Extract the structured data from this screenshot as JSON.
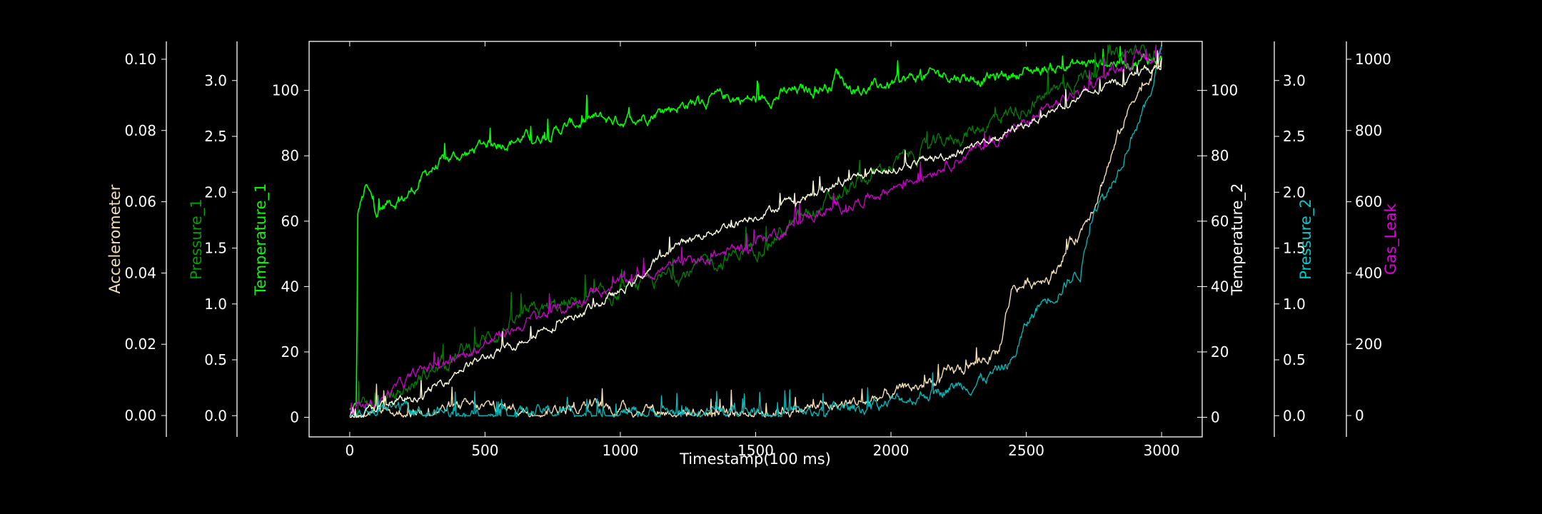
{
  "chart_data": {
    "type": "line",
    "title": "",
    "xlabel": "Timestamp(100 ms)",
    "xlim": [
      -150,
      3150
    ],
    "xticks": [
      0,
      500,
      1000,
      1500,
      2000,
      2500,
      3000
    ],
    "grid": false,
    "legend": "none",
    "axes": [
      {
        "id": "acc",
        "label": "Accelerometer",
        "side": "left",
        "color": "#f5deb3",
        "label_color": "#f5deb3",
        "lim": [
          -0.006,
          0.105
        ],
        "ticks": [
          0.0,
          0.02,
          0.04,
          0.06,
          0.08,
          0.1
        ],
        "decimals": 2
      },
      {
        "id": "p1",
        "label": "Pressure_1",
        "side": "left",
        "color": "#008000",
        "label_color": "#00a000",
        "lim": [
          -0.19,
          3.35
        ],
        "ticks": [
          0.0,
          0.5,
          1.0,
          1.5,
          2.0,
          2.5,
          3.0
        ],
        "decimals": 1
      },
      {
        "id": "t1",
        "label": "Temperature_1",
        "side": "left",
        "color": "#00ff00",
        "label_color": "#00ff00",
        "lim": [
          -6,
          115
        ],
        "ticks": [
          0,
          20,
          40,
          60,
          80,
          100
        ],
        "decimals": 0
      },
      {
        "id": "t2",
        "label": "Temperature_2",
        "side": "right",
        "color": "#ffffff",
        "label_color": "#ffffff",
        "lim": [
          -6,
          115
        ],
        "ticks": [
          0,
          20,
          40,
          60,
          80,
          100
        ],
        "decimals": 0
      },
      {
        "id": "p2",
        "label": "Pressure_2",
        "side": "right",
        "color": "#00bcbc",
        "label_color": "#00cccc",
        "lim": [
          -0.19,
          3.35
        ],
        "ticks": [
          0.0,
          0.5,
          1.0,
          1.5,
          2.0,
          2.5,
          3.0
        ],
        "decimals": 1
      },
      {
        "id": "gas",
        "label": "Gas_Leak",
        "side": "right",
        "color": "#cc00cc",
        "label_color": "#dd00dd",
        "lim": [
          -60,
          1050
        ],
        "ticks": [
          0,
          200,
          400,
          600,
          800,
          1000
        ],
        "decimals": 0
      }
    ],
    "series": [
      {
        "axis": "t1",
        "color": "#00ff00",
        "width": 1.6,
        "noise": 1.6,
        "x": [
          0,
          25,
          30,
          40,
          60,
          100,
          150,
          200,
          250,
          300,
          350,
          400,
          450,
          500,
          600,
          700,
          800,
          900,
          1000,
          1100,
          1200,
          1300,
          1400,
          1500,
          1600,
          1700,
          1780,
          1800,
          1850,
          1900,
          2000,
          2100,
          2200,
          2300,
          2400,
          2500,
          2600,
          2700,
          2800,
          2900,
          3000
        ],
        "y": [
          2,
          3,
          62,
          65,
          70,
          63,
          66,
          67,
          71,
          76,
          78,
          80,
          81,
          84,
          85,
          86,
          89,
          91,
          91,
          93,
          95,
          97,
          98,
          97,
          99,
          100,
          102,
          106,
          101,
          100,
          102,
          104,
          105,
          104,
          104,
          106,
          107,
          108,
          109,
          109,
          110
        ]
      },
      {
        "axis": "p1",
        "color": "#008000",
        "width": 1.3,
        "noise": 0.06,
        "x": [
          0,
          100,
          200,
          300,
          400,
          500,
          600,
          700,
          800,
          900,
          1000,
          1100,
          1200,
          1300,
          1400,
          1500,
          1600,
          1700,
          1800,
          1900,
          2000,
          2100,
          2200,
          2300,
          2400,
          2500,
          2600,
          2700,
          2800,
          2900,
          3000
        ],
        "y": [
          0.0,
          0.07,
          0.22,
          0.4,
          0.55,
          0.68,
          0.82,
          0.93,
          0.98,
          1.03,
          1.08,
          1.17,
          1.25,
          1.33,
          1.42,
          1.52,
          1.65,
          1.8,
          1.95,
          2.1,
          2.25,
          2.35,
          2.45,
          2.55,
          2.68,
          2.78,
          2.9,
          3.05,
          3.15,
          3.25,
          3.3
        ]
      },
      {
        "axis": "gas",
        "color": "#cc00cc",
        "width": 1.3,
        "noise": 14,
        "x": [
          0,
          100,
          200,
          300,
          400,
          500,
          600,
          700,
          800,
          900,
          1000,
          1100,
          1200,
          1300,
          1400,
          1500,
          1600,
          1700,
          1800,
          1900,
          2000,
          2100,
          2200,
          2300,
          2400,
          2500,
          2600,
          2700,
          2800,
          2900,
          3000
        ],
        "y": [
          0,
          40,
          90,
          140,
          160,
          200,
          240,
          280,
          300,
          350,
          370,
          400,
          420,
          440,
          460,
          490,
          520,
          560,
          580,
          610,
          640,
          670,
          710,
          740,
          780,
          820,
          870,
          910,
          960,
          1000,
          1010
        ]
      },
      {
        "axis": "acc",
        "color": "#f5deb3",
        "width": 1.4,
        "noise": 0.0015,
        "x": [
          0,
          100,
          200,
          300,
          400,
          500,
          600,
          700,
          800,
          900,
          1000,
          1100,
          1200,
          1300,
          1400,
          1500,
          1600,
          1700,
          1800,
          1900,
          2000,
          2100,
          2200,
          2300,
          2400,
          2430,
          2450,
          2500,
          2600,
          2650,
          2700,
          2750,
          2800,
          2850,
          2900,
          2950,
          3000
        ],
        "y": [
          0.0,
          0.001,
          0.001,
          0.002,
          0.002,
          0.002,
          0.002,
          0.002,
          0.002,
          0.002,
          0.002,
          0.002,
          0.001,
          0.001,
          0.001,
          0.001,
          0.002,
          0.002,
          0.003,
          0.004,
          0.006,
          0.008,
          0.011,
          0.014,
          0.018,
          0.03,
          0.036,
          0.037,
          0.04,
          0.047,
          0.052,
          0.06,
          0.07,
          0.08,
          0.09,
          0.095,
          0.1
        ]
      },
      {
        "axis": "p2",
        "color": "#00bcbc",
        "width": 1.3,
        "noise": 0.05,
        "x": [
          0,
          100,
          200,
          300,
          400,
          500,
          600,
          700,
          800,
          900,
          1000,
          1100,
          1200,
          1300,
          1400,
          1500,
          1600,
          1700,
          1800,
          1900,
          2000,
          2100,
          2200,
          2300,
          2400,
          2450,
          2500,
          2550,
          2600,
          2700,
          2750,
          2800,
          2850,
          2900,
          2950,
          3000
        ],
        "y": [
          0.0,
          0.02,
          0.03,
          0.03,
          0.03,
          0.03,
          0.03,
          0.03,
          0.03,
          0.03,
          0.03,
          0.03,
          0.03,
          0.03,
          0.03,
          0.03,
          0.03,
          0.03,
          0.05,
          0.08,
          0.12,
          0.18,
          0.25,
          0.3,
          0.4,
          0.5,
          0.8,
          1.0,
          1.1,
          1.3,
          1.9,
          2.0,
          2.3,
          2.6,
          2.8,
          3.3
        ]
      },
      {
        "axis": "t2",
        "color": "#ffffe0",
        "width": 1.4,
        "noise": 1.2,
        "x": [
          0,
          100,
          200,
          300,
          400,
          500,
          600,
          700,
          800,
          900,
          1000,
          1100,
          1200,
          1300,
          1400,
          1500,
          1600,
          1700,
          1800,
          1900,
          2000,
          2100,
          2200,
          2300,
          2400,
          2500,
          2600,
          2700,
          2800,
          2900,
          3000
        ],
        "y": [
          0,
          3,
          5,
          8,
          15,
          18,
          22,
          27,
          30,
          34,
          38,
          45,
          52,
          56,
          59,
          62,
          65,
          68,
          71,
          74,
          76,
          78,
          80,
          83,
          86,
          90,
          94,
          98,
          101,
          105,
          108
        ]
      }
    ]
  }
}
